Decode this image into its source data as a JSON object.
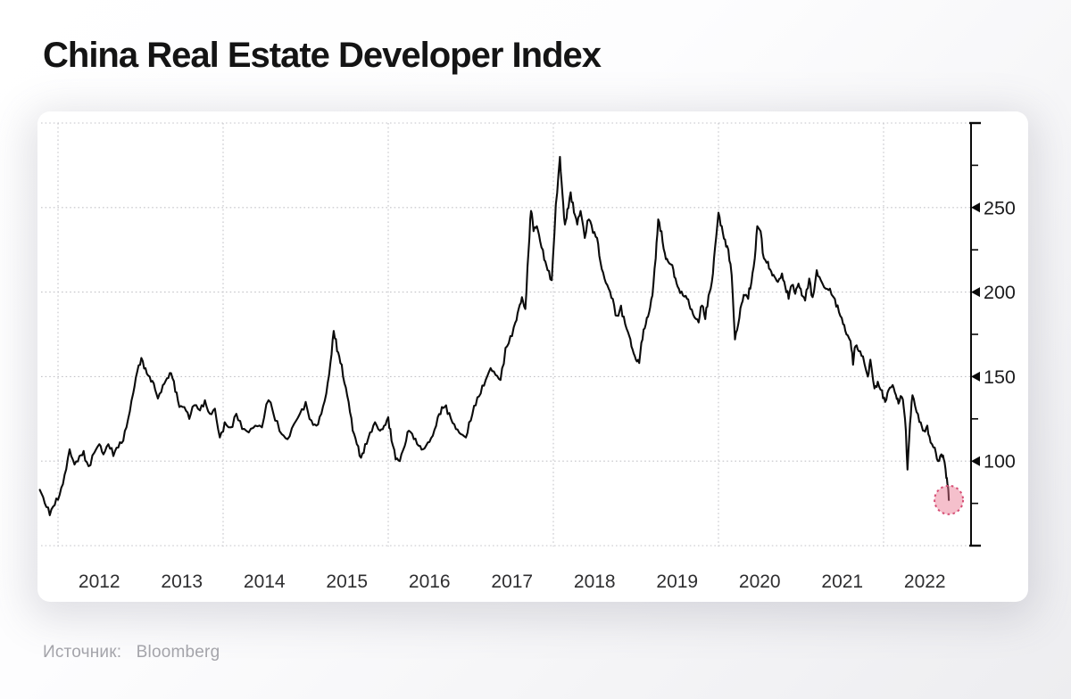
{
  "title": "China Real Estate Developer Index",
  "source": {
    "prefix": "Источник:",
    "name": "Bloomberg"
  },
  "colors": {
    "line": "#0b0b0b",
    "axis": "#0a0a0a",
    "grid": "#c3c3c8",
    "tick_label": "#1b1b1d",
    "year_label": "#2e2e30",
    "highlight_fill": "#e9738f",
    "highlight_stroke": "#d64f75",
    "card_bg": "#ffffff"
  },
  "chart_data": {
    "type": "line",
    "title": "China Real Estate Developer Index",
    "xlabel": "",
    "ylabel": "",
    "y_axis_side": "right",
    "grid": "dotted",
    "legend": "none",
    "xlim": [
      2011.75,
      2022.97
    ],
    "ylim": [
      50,
      300
    ],
    "x_tick_labels": [
      "2012",
      "2013",
      "2014",
      "2015",
      "2016",
      "2017",
      "2018",
      "2019",
      "2020",
      "2021",
      "2022"
    ],
    "y_tick_labels": [
      "100",
      "150",
      "200",
      "250"
    ],
    "y_tick_values": [
      100,
      150,
      200,
      250
    ],
    "y_minor_ticks": [
      75,
      125,
      175,
      225,
      275
    ],
    "x_gridline_years": [
      2012,
      2014,
      2016,
      2018,
      2020,
      2022
    ],
    "y_gridline_values": [
      50,
      100,
      150,
      200,
      250,
      300
    ],
    "highlight_point": {
      "x": 2022.79,
      "y": 77
    },
    "series": [
      {
        "name": "China Real Estate Developer Index",
        "points": [
          [
            2011.78,
            83
          ],
          [
            2011.84,
            75
          ],
          [
            2011.9,
            68
          ],
          [
            2011.96,
            74
          ],
          [
            2012.02,
            80
          ],
          [
            2012.08,
            92
          ],
          [
            2012.14,
            107
          ],
          [
            2012.2,
            98
          ],
          [
            2012.26,
            103
          ],
          [
            2012.31,
            106
          ],
          [
            2012.37,
            97
          ],
          [
            2012.44,
            105
          ],
          [
            2012.5,
            110
          ],
          [
            2012.55,
            104
          ],
          [
            2012.61,
            110
          ],
          [
            2012.67,
            103
          ],
          [
            2012.73,
            108
          ],
          [
            2012.79,
            112
          ],
          [
            2012.85,
            125
          ],
          [
            2012.91,
            140
          ],
          [
            2012.96,
            153
          ],
          [
            2013.01,
            161
          ],
          [
            2013.06,
            155
          ],
          [
            2013.11,
            150
          ],
          [
            2013.16,
            146
          ],
          [
            2013.21,
            137
          ],
          [
            2013.27,
            145
          ],
          [
            2013.32,
            149
          ],
          [
            2013.37,
            152
          ],
          [
            2013.42,
            141
          ],
          [
            2013.47,
            132
          ],
          [
            2013.53,
            132
          ],
          [
            2013.59,
            125
          ],
          [
            2013.65,
            133
          ],
          [
            2013.72,
            130
          ],
          [
            2013.78,
            136
          ],
          [
            2013.84,
            128
          ],
          [
            2013.9,
            131
          ],
          [
            2013.96,
            114
          ],
          [
            2014.02,
            123
          ],
          [
            2014.09,
            120
          ],
          [
            2014.16,
            128
          ],
          [
            2014.23,
            119
          ],
          [
            2014.31,
            117
          ],
          [
            2014.39,
            121
          ],
          [
            2014.47,
            120
          ],
          [
            2014.55,
            136
          ],
          [
            2014.63,
            124
          ],
          [
            2014.71,
            116
          ],
          [
            2014.78,
            113
          ],
          [
            2014.86,
            122
          ],
          [
            2014.93,
            128
          ],
          [
            2015.0,
            135
          ],
          [
            2015.07,
            124
          ],
          [
            2015.13,
            121
          ],
          [
            2015.19,
            128
          ],
          [
            2015.25,
            140
          ],
          [
            2015.3,
            158
          ],
          [
            2015.34,
            177
          ],
          [
            2015.38,
            165
          ],
          [
            2015.42,
            158
          ],
          [
            2015.47,
            146
          ],
          [
            2015.52,
            135
          ],
          [
            2015.57,
            118
          ],
          [
            2015.62,
            110
          ],
          [
            2015.67,
            102
          ],
          [
            2015.72,
            110
          ],
          [
            2015.78,
            117
          ],
          [
            2015.84,
            123
          ],
          [
            2015.9,
            118
          ],
          [
            2015.95,
            121
          ],
          [
            2016.0,
            126
          ],
          [
            2016.04,
            112
          ],
          [
            2016.09,
            101
          ],
          [
            2016.14,
            100
          ],
          [
            2016.2,
            109
          ],
          [
            2016.25,
            118
          ],
          [
            2016.31,
            113
          ],
          [
            2016.37,
            109
          ],
          [
            2016.42,
            107
          ],
          [
            2016.48,
            111
          ],
          [
            2016.54,
            115
          ],
          [
            2016.6,
            126
          ],
          [
            2016.65,
            132
          ],
          [
            2016.7,
            133
          ],
          [
            2016.76,
            125
          ],
          [
            2016.82,
            119
          ],
          [
            2016.88,
            116
          ],
          [
            2016.94,
            114
          ],
          [
            2017.0,
            124
          ],
          [
            2017.06,
            133
          ],
          [
            2017.12,
            140
          ],
          [
            2017.18,
            148
          ],
          [
            2017.24,
            155
          ],
          [
            2017.3,
            151
          ],
          [
            2017.36,
            148
          ],
          [
            2017.42,
            167
          ],
          [
            2017.48,
            174
          ],
          [
            2017.54,
            182
          ],
          [
            2017.58,
            190
          ],
          [
            2017.62,
            197
          ],
          [
            2017.66,
            190
          ],
          [
            2017.7,
            225
          ],
          [
            2017.73,
            248
          ],
          [
            2017.76,
            236
          ],
          [
            2017.8,
            239
          ],
          [
            2017.84,
            230
          ],
          [
            2017.89,
            219
          ],
          [
            2017.93,
            213
          ],
          [
            2017.98,
            207
          ],
          [
            2018.03,
            252
          ],
          [
            2018.08,
            280
          ],
          [
            2018.11,
            258
          ],
          [
            2018.14,
            240
          ],
          [
            2018.17,
            249
          ],
          [
            2018.21,
            259
          ],
          [
            2018.25,
            247
          ],
          [
            2018.29,
            240
          ],
          [
            2018.33,
            248
          ],
          [
            2018.38,
            232
          ],
          [
            2018.43,
            243
          ],
          [
            2018.48,
            235
          ],
          [
            2018.53,
            232
          ],
          [
            2018.57,
            218
          ],
          [
            2018.62,
            208
          ],
          [
            2018.67,
            202
          ],
          [
            2018.72,
            196
          ],
          [
            2018.77,
            186
          ],
          [
            2018.82,
            192
          ],
          [
            2018.87,
            181
          ],
          [
            2018.92,
            174
          ],
          [
            2018.96,
            166
          ],
          [
            2019.0,
            160
          ],
          [
            2019.04,
            158
          ],
          [
            2019.08,
            172
          ],
          [
            2019.12,
            181
          ],
          [
            2019.16,
            188
          ],
          [
            2019.2,
            198
          ],
          [
            2019.24,
            220
          ],
          [
            2019.27,
            243
          ],
          [
            2019.31,
            236
          ],
          [
            2019.35,
            223
          ],
          [
            2019.39,
            218
          ],
          [
            2019.44,
            216
          ],
          [
            2019.48,
            208
          ],
          [
            2019.52,
            202
          ],
          [
            2019.57,
            198
          ],
          [
            2019.62,
            196
          ],
          [
            2019.66,
            190
          ],
          [
            2019.71,
            185
          ],
          [
            2019.76,
            182
          ],
          [
            2019.8,
            192
          ],
          [
            2019.84,
            184
          ],
          [
            2019.88,
            198
          ],
          [
            2019.92,
            206
          ],
          [
            2019.96,
            227
          ],
          [
            2020.0,
            247
          ],
          [
            2020.04,
            239
          ],
          [
            2020.08,
            231
          ],
          [
            2020.12,
            225
          ],
          [
            2020.16,
            210
          ],
          [
            2020.2,
            172
          ],
          [
            2020.24,
            181
          ],
          [
            2020.28,
            193
          ],
          [
            2020.32,
            198
          ],
          [
            2020.36,
            196
          ],
          [
            2020.4,
            206
          ],
          [
            2020.44,
            220
          ],
          [
            2020.47,
            239
          ],
          [
            2020.51,
            236
          ],
          [
            2020.55,
            220
          ],
          [
            2020.6,
            218
          ],
          [
            2020.64,
            212
          ],
          [
            2020.68,
            209
          ],
          [
            2020.72,
            206
          ],
          [
            2020.77,
            211
          ],
          [
            2020.81,
            203
          ],
          [
            2020.85,
            196
          ],
          [
            2020.89,
            204
          ],
          [
            2020.93,
            199
          ],
          [
            2020.97,
            205
          ],
          [
            2021.01,
            198
          ],
          [
            2021.05,
            195
          ],
          [
            2021.1,
            208
          ],
          [
            2021.14,
            197
          ],
          [
            2021.19,
            213
          ],
          [
            2021.24,
            207
          ],
          [
            2021.3,
            202
          ],
          [
            2021.35,
            202
          ],
          [
            2021.41,
            196
          ],
          [
            2021.46,
            188
          ],
          [
            2021.51,
            181
          ],
          [
            2021.55,
            175
          ],
          [
            2021.6,
            171
          ],
          [
            2021.63,
            157
          ],
          [
            2021.66,
            168
          ],
          [
            2021.7,
            165
          ],
          [
            2021.75,
            162
          ],
          [
            2021.81,
            150
          ],
          [
            2021.84,
            160
          ],
          [
            2021.89,
            143
          ],
          [
            2021.93,
            147
          ],
          [
            2021.98,
            142
          ],
          [
            2022.02,
            135
          ],
          [
            2022.06,
            142
          ],
          [
            2022.11,
            145
          ],
          [
            2022.15,
            139
          ],
          [
            2022.18,
            134
          ],
          [
            2022.22,
            138
          ],
          [
            2022.26,
            125
          ],
          [
            2022.29,
            95
          ],
          [
            2022.32,
            122
          ],
          [
            2022.35,
            139
          ],
          [
            2022.4,
            129
          ],
          [
            2022.45,
            123
          ],
          [
            2022.49,
            118
          ],
          [
            2022.53,
            121
          ],
          [
            2022.57,
            111
          ],
          [
            2022.62,
            108
          ],
          [
            2022.66,
            100
          ],
          [
            2022.7,
            104
          ],
          [
            2022.73,
            101
          ],
          [
            2022.76,
            90
          ],
          [
            2022.78,
            85
          ],
          [
            2022.79,
            77
          ]
        ]
      }
    ]
  }
}
